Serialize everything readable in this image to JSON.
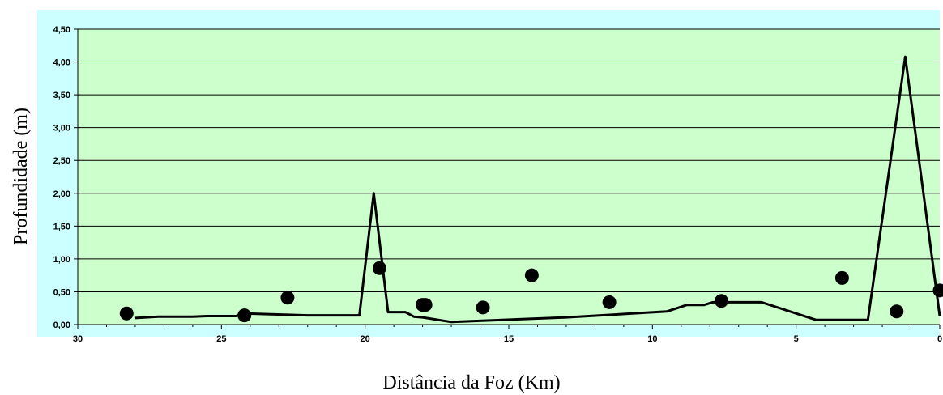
{
  "chart_data": {
    "type": "line",
    "title": "",
    "xlabel": "Distância da Foz (Km)",
    "ylabel": "Profundidade (m)",
    "x_reversed": true,
    "xlim": [
      0,
      30
    ],
    "ylim": [
      0,
      4.5
    ],
    "x_ticks": [
      "30",
      "25",
      "20",
      "15",
      "10",
      "5",
      "0"
    ],
    "y_ticks": [
      "0,00",
      "0,50",
      "1,00",
      "1,50",
      "2,00",
      "2,50",
      "3,00",
      "3,50",
      "4,00",
      "4,50"
    ],
    "grid": "horizontal",
    "legend": "none",
    "colors": {
      "outer_background": "#ccffff",
      "plot_background": "#ccffcc",
      "line": "#000000",
      "markers": "#000000"
    },
    "series": [
      {
        "type": "line",
        "points": [
          {
            "x": 28.0,
            "y": 0.1
          },
          {
            "x": 27.2,
            "y": 0.12
          },
          {
            "x": 26.0,
            "y": 0.12
          },
          {
            "x": 25.5,
            "y": 0.13
          },
          {
            "x": 24.5,
            "y": 0.13
          },
          {
            "x": 24.2,
            "y": 0.17
          },
          {
            "x": 22.0,
            "y": 0.14
          },
          {
            "x": 20.2,
            "y": 0.14
          },
          {
            "x": 19.7,
            "y": 2.0
          },
          {
            "x": 19.2,
            "y": 0.19
          },
          {
            "x": 18.6,
            "y": 0.19
          },
          {
            "x": 18.3,
            "y": 0.12
          },
          {
            "x": 18.0,
            "y": 0.11
          },
          {
            "x": 17.0,
            "y": 0.04
          },
          {
            "x": 13.0,
            "y": 0.11
          },
          {
            "x": 9.5,
            "y": 0.2
          },
          {
            "x": 8.8,
            "y": 0.3
          },
          {
            "x": 8.2,
            "y": 0.3
          },
          {
            "x": 7.9,
            "y": 0.34
          },
          {
            "x": 6.2,
            "y": 0.34
          },
          {
            "x": 4.3,
            "y": 0.07
          },
          {
            "x": 2.5,
            "y": 0.07
          },
          {
            "x": 1.2,
            "y": 4.08
          },
          {
            "x": 0.0,
            "y": 0.13
          }
        ]
      },
      {
        "type": "scatter",
        "points": [
          {
            "x": 28.3,
            "y": 0.17
          },
          {
            "x": 24.2,
            "y": 0.14
          },
          {
            "x": 22.7,
            "y": 0.41
          },
          {
            "x": 19.5,
            "y": 0.86
          },
          {
            "x": 18.0,
            "y": 0.3
          },
          {
            "x": 17.9,
            "y": 0.3
          },
          {
            "x": 15.9,
            "y": 0.26
          },
          {
            "x": 14.2,
            "y": 0.75
          },
          {
            "x": 11.5,
            "y": 0.34
          },
          {
            "x": 7.6,
            "y": 0.36
          },
          {
            "x": 3.4,
            "y": 0.71
          },
          {
            "x": 1.5,
            "y": 0.2
          },
          {
            "x": 0.0,
            "y": 0.52
          }
        ]
      }
    ]
  }
}
